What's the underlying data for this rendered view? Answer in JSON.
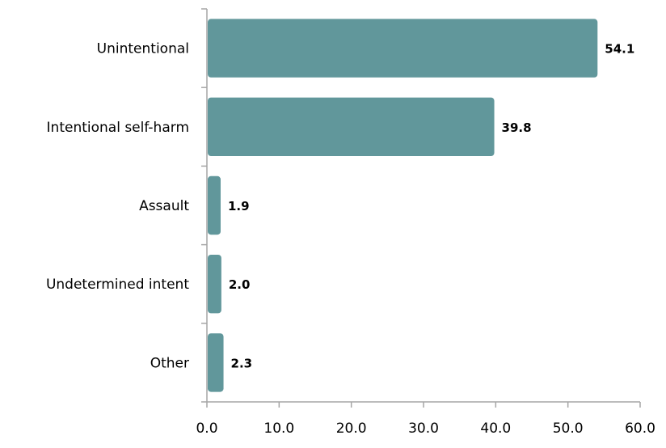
{
  "chart_data": {
    "type": "bar",
    "orientation": "horizontal",
    "title": "",
    "xlabel": "",
    "ylabel": "",
    "categories": [
      "Unintentional",
      "Intentional self-harm",
      "Assault",
      "Undetermined intent",
      "Other"
    ],
    "values": [
      54.1,
      39.8,
      1.9,
      2.0,
      2.3
    ],
    "data_labels": [
      "54.1",
      "39.8",
      "1.9",
      "2.0",
      "2.3"
    ],
    "xlim": [
      0,
      60
    ],
    "x_ticks": [
      0,
      10,
      20,
      30,
      40,
      50,
      60
    ],
    "x_tick_labels": [
      "0.0",
      "10.0",
      "20.0",
      "30.0",
      "40.0",
      "50.0",
      "60.0"
    ],
    "grid": false,
    "legend": "none",
    "bar_color": "#61979b"
  }
}
